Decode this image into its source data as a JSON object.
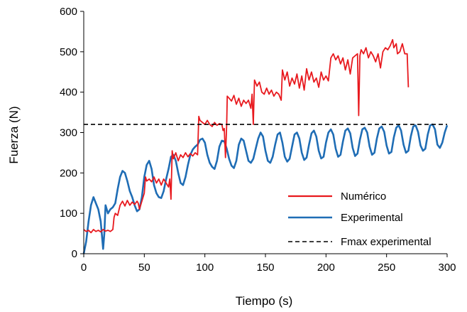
{
  "chart_data": {
    "type": "line",
    "title": "",
    "xlabel": "Tiempo (s)",
    "ylabel": "Fuerza (N)",
    "xlim": [
      0,
      300
    ],
    "ylim": [
      0,
      600
    ],
    "x_ticks": [
      0,
      50,
      100,
      150,
      200,
      250,
      300
    ],
    "y_ticks": [
      0,
      100,
      200,
      300,
      400,
      500,
      600
    ],
    "grid": false,
    "legend_position": "bottom-right",
    "series": [
      {
        "name": "Numérico",
        "color": "#e8191e",
        "style": "solid",
        "points": [
          [
            0,
            60
          ],
          [
            2,
            55
          ],
          [
            4,
            58
          ],
          [
            6,
            52
          ],
          [
            8,
            60
          ],
          [
            10,
            55
          ],
          [
            12,
            58
          ],
          [
            14,
            54
          ],
          [
            16,
            60
          ],
          [
            18,
            56
          ],
          [
            20,
            58
          ],
          [
            22,
            55
          ],
          [
            24,
            60
          ],
          [
            25,
            90
          ],
          [
            26,
            100
          ],
          [
            28,
            95
          ],
          [
            30,
            120
          ],
          [
            32,
            130
          ],
          [
            34,
            118
          ],
          [
            36,
            132
          ],
          [
            38,
            120
          ],
          [
            40,
            128
          ],
          [
            42,
            122
          ],
          [
            44,
            130
          ],
          [
            45,
            125
          ],
          [
            46,
            110
          ],
          [
            48,
            130
          ],
          [
            50,
            150
          ],
          [
            51,
            190
          ],
          [
            52,
            180
          ],
          [
            54,
            185
          ],
          [
            56,
            178
          ],
          [
            58,
            190
          ],
          [
            60,
            175
          ],
          [
            62,
            185
          ],
          [
            64,
            170
          ],
          [
            66,
            185
          ],
          [
            68,
            175
          ],
          [
            70,
            165
          ],
          [
            71,
            185
          ],
          [
            72,
            135
          ],
          [
            73,
            255
          ],
          [
            74,
            235
          ],
          [
            76,
            250
          ],
          [
            78,
            230
          ],
          [
            80,
            245
          ],
          [
            82,
            238
          ],
          [
            84,
            250
          ],
          [
            86,
            240
          ],
          [
            88,
            248
          ],
          [
            90,
            242
          ],
          [
            92,
            250
          ],
          [
            94,
            245
          ],
          [
            95,
            340
          ],
          [
            96,
            330
          ],
          [
            98,
            325
          ],
          [
            100,
            320
          ],
          [
            102,
            330
          ],
          [
            104,
            320
          ],
          [
            106,
            315
          ],
          [
            108,
            325
          ],
          [
            110,
            318
          ],
          [
            112,
            322
          ],
          [
            114,
            320
          ],
          [
            115,
            305
          ],
          [
            116,
            310
          ],
          [
            117,
            238
          ],
          [
            118,
            320
          ],
          [
            118.5,
            390
          ],
          [
            120,
            385
          ],
          [
            122,
            378
          ],
          [
            124,
            392
          ],
          [
            126,
            370
          ],
          [
            128,
            385
          ],
          [
            130,
            365
          ],
          [
            132,
            380
          ],
          [
            134,
            372
          ],
          [
            136,
            380
          ],
          [
            138,
            360
          ],
          [
            139,
            395
          ],
          [
            140,
            320
          ],
          [
            141,
            430
          ],
          [
            143,
            415
          ],
          [
            145,
            425
          ],
          [
            147,
            400
          ],
          [
            149,
            395
          ],
          [
            151,
            410
          ],
          [
            153,
            395
          ],
          [
            155,
            405
          ],
          [
            157,
            390
          ],
          [
            159,
            400
          ],
          [
            161,
            395
          ],
          [
            163,
            380
          ],
          [
            164,
            455
          ],
          [
            166,
            430
          ],
          [
            168,
            450
          ],
          [
            170,
            415
          ],
          [
            172,
            435
          ],
          [
            174,
            420
          ],
          [
            176,
            445
          ],
          [
            178,
            410
          ],
          [
            180,
            440
          ],
          [
            182,
            405
          ],
          [
            184,
            458
          ],
          [
            186,
            430
          ],
          [
            188,
            450
          ],
          [
            190,
            425
          ],
          [
            192,
            435
          ],
          [
            194,
            412
          ],
          [
            196,
            450
          ],
          [
            198,
            430
          ],
          [
            200,
            440
          ],
          [
            202,
            428
          ],
          [
            204,
            485
          ],
          [
            206,
            495
          ],
          [
            208,
            480
          ],
          [
            210,
            490
          ],
          [
            212,
            470
          ],
          [
            214,
            485
          ],
          [
            216,
            455
          ],
          [
            218,
            480
          ],
          [
            220,
            445
          ],
          [
            222,
            485
          ],
          [
            224,
            490
          ],
          [
            226,
            495
          ],
          [
            227,
            342
          ],
          [
            228,
            490
          ],
          [
            229,
            505
          ],
          [
            231,
            495
          ],
          [
            233,
            510
          ],
          [
            235,
            485
          ],
          [
            237,
            500
          ],
          [
            239,
            490
          ],
          [
            241,
            475
          ],
          [
            243,
            495
          ],
          [
            245,
            460
          ],
          [
            247,
            500
          ],
          [
            249,
            510
          ],
          [
            251,
            505
          ],
          [
            253,
            515
          ],
          [
            255,
            530
          ],
          [
            256,
            510
          ],
          [
            258,
            520
          ],
          [
            259,
            495
          ],
          [
            261,
            500
          ],
          [
            263,
            520
          ],
          [
            265,
            495
          ],
          [
            267,
            495
          ],
          [
            268,
            412
          ]
        ]
      },
      {
        "name": "Experimental",
        "color": "#1f6db5",
        "style": "solid",
        "points": [
          [
            0,
            0
          ],
          [
            2,
            30
          ],
          [
            4,
            80
          ],
          [
            6,
            120
          ],
          [
            8,
            140
          ],
          [
            10,
            125
          ],
          [
            12,
            110
          ],
          [
            14,
            80
          ],
          [
            16,
            12
          ],
          [
            17,
            50
          ],
          [
            18,
            120
          ],
          [
            20,
            100
          ],
          [
            22,
            110
          ],
          [
            24,
            115
          ],
          [
            26,
            125
          ],
          [
            28,
            160
          ],
          [
            30,
            190
          ],
          [
            32,
            205
          ],
          [
            34,
            200
          ],
          [
            36,
            180
          ],
          [
            38,
            155
          ],
          [
            40,
            140
          ],
          [
            42,
            120
          ],
          [
            44,
            105
          ],
          [
            46,
            110
          ],
          [
            48,
            140
          ],
          [
            50,
            190
          ],
          [
            52,
            220
          ],
          [
            54,
            230
          ],
          [
            56,
            210
          ],
          [
            58,
            170
          ],
          [
            60,
            150
          ],
          [
            62,
            140
          ],
          [
            64,
            138
          ],
          [
            66,
            155
          ],
          [
            68,
            185
          ],
          [
            70,
            210
          ],
          [
            72,
            240
          ],
          [
            74,
            245
          ],
          [
            76,
            230
          ],
          [
            78,
            200
          ],
          [
            80,
            175
          ],
          [
            82,
            170
          ],
          [
            84,
            190
          ],
          [
            86,
            220
          ],
          [
            88,
            245
          ],
          [
            90,
            258
          ],
          [
            92,
            265
          ],
          [
            94,
            270
          ],
          [
            96,
            282
          ],
          [
            98,
            285
          ],
          [
            100,
            275
          ],
          [
            102,
            245
          ],
          [
            104,
            225
          ],
          [
            106,
            215
          ],
          [
            108,
            210
          ],
          [
            110,
            230
          ],
          [
            112,
            265
          ],
          [
            114,
            280
          ],
          [
            116,
            278
          ],
          [
            118,
            260
          ],
          [
            120,
            235
          ],
          [
            122,
            218
          ],
          [
            124,
            212
          ],
          [
            126,
            230
          ],
          [
            128,
            270
          ],
          [
            130,
            285
          ],
          [
            132,
            280
          ],
          [
            134,
            255
          ],
          [
            136,
            230
          ],
          [
            138,
            225
          ],
          [
            140,
            235
          ],
          [
            142,
            260
          ],
          [
            144,
            285
          ],
          [
            146,
            300
          ],
          [
            148,
            290
          ],
          [
            150,
            255
          ],
          [
            152,
            230
          ],
          [
            154,
            225
          ],
          [
            156,
            240
          ],
          [
            158,
            270
          ],
          [
            160,
            295
          ],
          [
            162,
            300
          ],
          [
            164,
            275
          ],
          [
            166,
            240
          ],
          [
            168,
            228
          ],
          [
            170,
            235
          ],
          [
            172,
            265
          ],
          [
            174,
            295
          ],
          [
            176,
            300
          ],
          [
            178,
            285
          ],
          [
            180,
            250
          ],
          [
            182,
            232
          ],
          [
            184,
            238
          ],
          [
            186,
            270
          ],
          [
            188,
            298
          ],
          [
            190,
            305
          ],
          [
            192,
            290
          ],
          [
            194,
            255
          ],
          [
            196,
            236
          ],
          [
            198,
            240
          ],
          [
            200,
            275
          ],
          [
            202,
            300
          ],
          [
            204,
            308
          ],
          [
            206,
            295
          ],
          [
            208,
            260
          ],
          [
            210,
            240
          ],
          [
            212,
            245
          ],
          [
            214,
            278
          ],
          [
            216,
            305
          ],
          [
            218,
            310
          ],
          [
            220,
            298
          ],
          [
            222,
            262
          ],
          [
            224,
            242
          ],
          [
            226,
            248
          ],
          [
            228,
            282
          ],
          [
            230,
            308
          ],
          [
            232,
            312
          ],
          [
            234,
            300
          ],
          [
            236,
            265
          ],
          [
            238,
            245
          ],
          [
            240,
            250
          ],
          [
            242,
            285
          ],
          [
            244,
            310
          ],
          [
            246,
            315
          ],
          [
            248,
            302
          ],
          [
            250,
            268
          ],
          [
            252,
            248
          ],
          [
            254,
            252
          ],
          [
            256,
            288
          ],
          [
            258,
            312
          ],
          [
            260,
            318
          ],
          [
            262,
            305
          ],
          [
            264,
            270
          ],
          [
            266,
            250
          ],
          [
            268,
            255
          ],
          [
            270,
            290
          ],
          [
            272,
            315
          ],
          [
            274,
            318
          ],
          [
            276,
            302
          ],
          [
            278,
            268
          ],
          [
            280,
            255
          ],
          [
            282,
            260
          ],
          [
            284,
            295
          ],
          [
            286,
            318
          ],
          [
            288,
            320
          ],
          [
            290,
            308
          ],
          [
            292,
            270
          ],
          [
            294,
            262
          ],
          [
            296,
            275
          ],
          [
            298,
            300
          ],
          [
            300,
            318
          ]
        ]
      },
      {
        "name": "Fmax experimental",
        "color": "#000000",
        "style": "dashed",
        "points": [
          [
            0,
            320
          ],
          [
            300,
            320
          ]
        ]
      }
    ]
  }
}
